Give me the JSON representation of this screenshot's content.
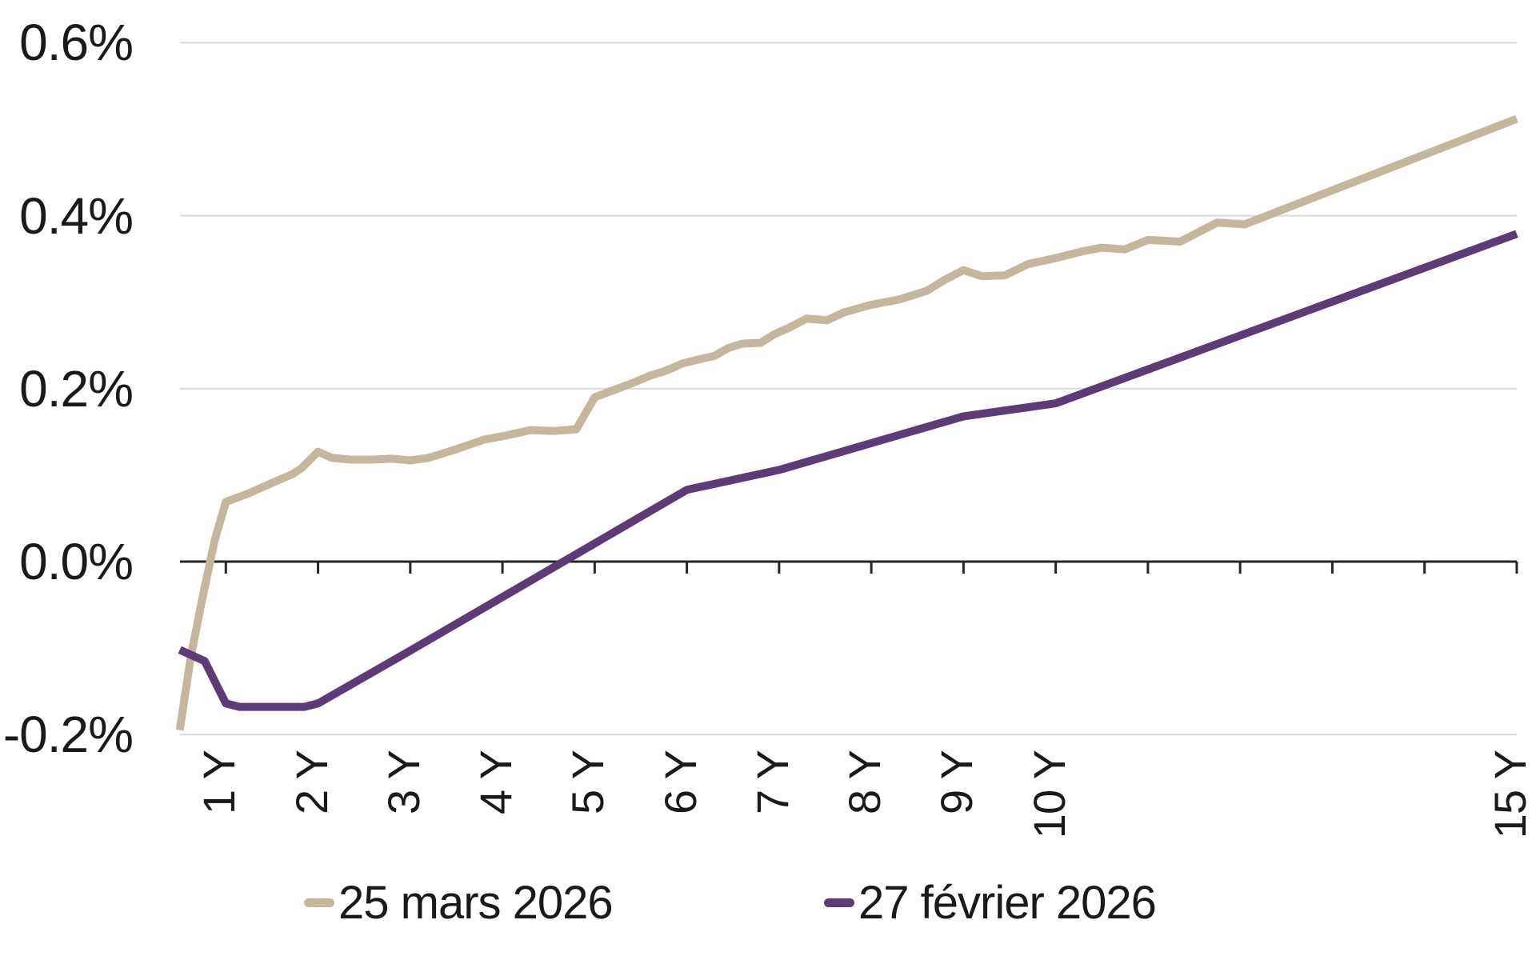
{
  "chart_data": {
    "type": "line",
    "title": "",
    "ylabel": "",
    "xlabel": "",
    "unit": "%",
    "grid": "horizontal",
    "legend_position": "bottom",
    "y_axis": {
      "range": [
        -0.2,
        0.6
      ],
      "ticks": [
        {
          "value": 0.6,
          "label": "0.6%"
        },
        {
          "value": 0.4,
          "label": "0.4%"
        },
        {
          "value": 0.2,
          "label": "0.2%"
        },
        {
          "value": 0.0,
          "label": "0.0%"
        },
        {
          "value": -0.2,
          "label": "-0.2%"
        }
      ]
    },
    "x_axis": {
      "range_years": [
        0.5,
        15
      ],
      "tick_years": [
        1,
        2,
        3,
        4,
        5,
        6,
        7,
        8,
        9,
        10,
        11,
        12,
        13,
        14,
        15
      ],
      "labeled_ticks": [
        {
          "year": 1,
          "label": "1 Y"
        },
        {
          "year": 2,
          "label": "2 Y"
        },
        {
          "year": 3,
          "label": "3 Y"
        },
        {
          "year": 4,
          "label": "4 Y"
        },
        {
          "year": 5,
          "label": "5 Y"
        },
        {
          "year": 6,
          "label": "6 Y"
        },
        {
          "year": 7,
          "label": "7 Y"
        },
        {
          "year": 8,
          "label": "8 Y"
        },
        {
          "year": 9,
          "label": "9 Y"
        },
        {
          "year": 10,
          "label": "10 Y"
        },
        {
          "year": 15,
          "label": "15 Y"
        }
      ]
    },
    "series": [
      {
        "name": "25 mars 2026",
        "color": "#c5b79e",
        "points": [
          [
            0.5,
            -0.195
          ],
          [
            0.62,
            -0.11
          ],
          [
            0.75,
            -0.04
          ],
          [
            0.88,
            0.025
          ],
          [
            1.0,
            0.069
          ],
          [
            1.1,
            0.073
          ],
          [
            1.25,
            0.079
          ],
          [
            1.5,
            0.091
          ],
          [
            1.72,
            0.101
          ],
          [
            1.82,
            0.108
          ],
          [
            2.0,
            0.127
          ],
          [
            2.15,
            0.12
          ],
          [
            2.35,
            0.118
          ],
          [
            2.6,
            0.118
          ],
          [
            2.8,
            0.119
          ],
          [
            3.0,
            0.117
          ],
          [
            3.2,
            0.12
          ],
          [
            3.5,
            0.13
          ],
          [
            3.8,
            0.141
          ],
          [
            4.05,
            0.146
          ],
          [
            4.3,
            0.152
          ],
          [
            4.55,
            0.151
          ],
          [
            4.8,
            0.153
          ],
          [
            5.0,
            0.19
          ],
          [
            5.2,
            0.198
          ],
          [
            5.4,
            0.206
          ],
          [
            5.6,
            0.215
          ],
          [
            5.78,
            0.221
          ],
          [
            5.95,
            0.229
          ],
          [
            6.1,
            0.233
          ],
          [
            6.3,
            0.238
          ],
          [
            6.45,
            0.247
          ],
          [
            6.6,
            0.252
          ],
          [
            6.8,
            0.253
          ],
          [
            6.95,
            0.263
          ],
          [
            7.1,
            0.27
          ],
          [
            7.3,
            0.281
          ],
          [
            7.52,
            0.279
          ],
          [
            7.7,
            0.288
          ],
          [
            8.0,
            0.297
          ],
          [
            8.3,
            0.303
          ],
          [
            8.6,
            0.313
          ],
          [
            8.8,
            0.326
          ],
          [
            9.0,
            0.337
          ],
          [
            9.2,
            0.33
          ],
          [
            9.45,
            0.331
          ],
          [
            9.7,
            0.344
          ],
          [
            10.0,
            0.351
          ],
          [
            10.3,
            0.359
          ],
          [
            10.5,
            0.363
          ],
          [
            10.75,
            0.361
          ],
          [
            11.0,
            0.372
          ],
          [
            11.35,
            0.37
          ],
          [
            11.75,
            0.392
          ],
          [
            12.05,
            0.39
          ],
          [
            15.0,
            0.512
          ]
        ]
      },
      {
        "name": "27 février 2026",
        "color": "#5c3b76",
        "points": [
          [
            0.5,
            -0.102
          ],
          [
            0.77,
            -0.115
          ],
          [
            1.0,
            -0.164
          ],
          [
            1.15,
            -0.168
          ],
          [
            1.85,
            -0.168
          ],
          [
            2.0,
            -0.164
          ],
          [
            3.0,
            -0.103
          ],
          [
            4.0,
            -0.041
          ],
          [
            5.0,
            0.021
          ],
          [
            6.0,
            0.083
          ],
          [
            7.0,
            0.106
          ],
          [
            9.0,
            0.168
          ],
          [
            10.0,
            0.183
          ],
          [
            15.0,
            0.379
          ]
        ]
      }
    ]
  },
  "legend": {
    "entries": [
      {
        "label": "25 mars 2026",
        "color": "#c5b79e"
      },
      {
        "label": "27 février 2026",
        "color": "#5c3b76"
      }
    ]
  },
  "colors": {
    "background": "#ffffff",
    "gridline": "#d9d9d9",
    "axis": "#262626",
    "text": "#1a1a1a"
  }
}
